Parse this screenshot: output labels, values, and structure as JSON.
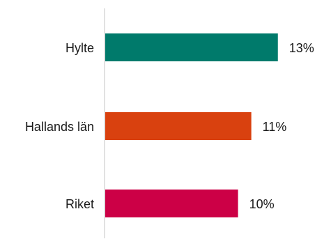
{
  "chart_data": {
    "type": "bar",
    "orientation": "horizontal",
    "categories": [
      "Hylte",
      "Hallands län",
      "Riket"
    ],
    "values": [
      13,
      11,
      10
    ],
    "value_labels": [
      "13%",
      "11%",
      "10%"
    ],
    "colors": [
      "#007a6b",
      "#d9410f",
      "#cc0046"
    ],
    "axis_color": "#d9d9d9",
    "xlim": [
      0,
      13.8
    ],
    "unit": "%",
    "title": "",
    "xlabel": "",
    "ylabel": "",
    "grid": false,
    "legend": "none"
  }
}
